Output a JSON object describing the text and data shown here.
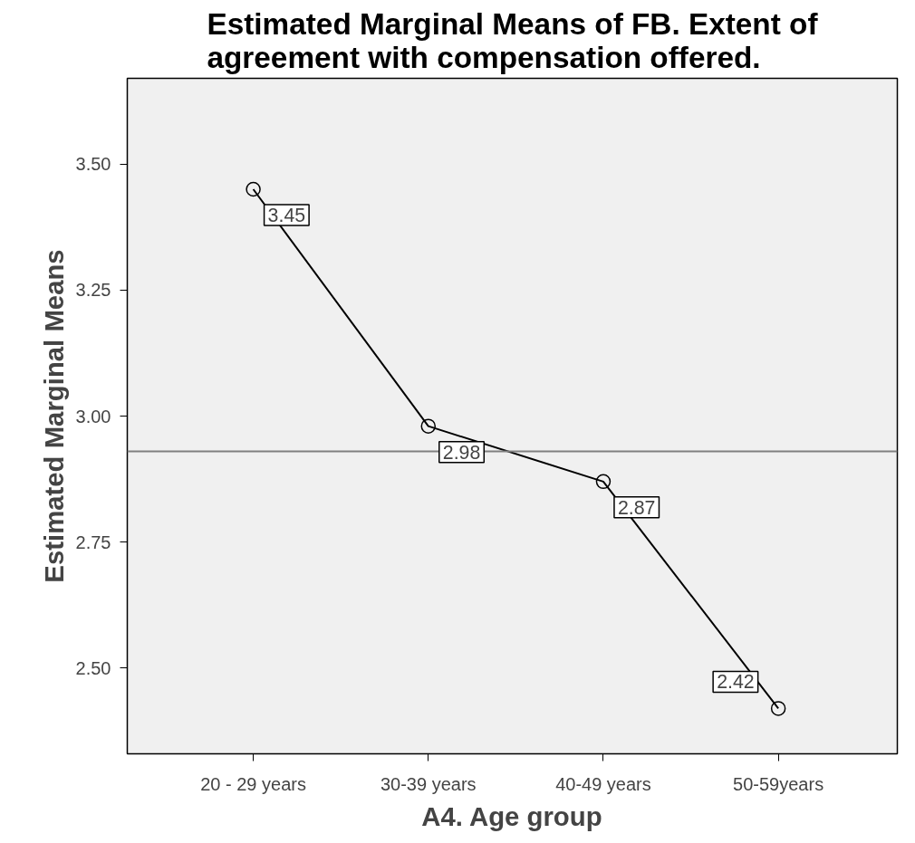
{
  "chart_data": {
    "type": "line",
    "title": "Estimated Marginal Means of FB. Extent of agreement with compensation offered.",
    "xlabel": "A4. Age group",
    "ylabel": "Estimated Marginal Means",
    "categories": [
      "20 - 29 years",
      "30-39 years",
      "40-49 years",
      "50-59years"
    ],
    "series": [
      {
        "color": "#000000",
        "values": [
          3.45,
          2.98,
          2.87,
          2.42
        ]
      }
    ],
    "ylim": [
      2.33,
      3.67
    ],
    "yticks": [
      {
        "value": 2.5,
        "label": "2.50"
      },
      {
        "value": 2.75,
        "label": "2.75"
      },
      {
        "value": 3.0,
        "label": "3.00"
      },
      {
        "value": 3.25,
        "label": "3.25"
      },
      {
        "value": 3.5,
        "label": "3.50"
      }
    ],
    "ref_lines": [
      {
        "axis": "y",
        "value": 2.93,
        "color": "#808080"
      }
    ],
    "data_labels": true,
    "marker": "circle",
    "line_style": "solid",
    "grid": false
  }
}
